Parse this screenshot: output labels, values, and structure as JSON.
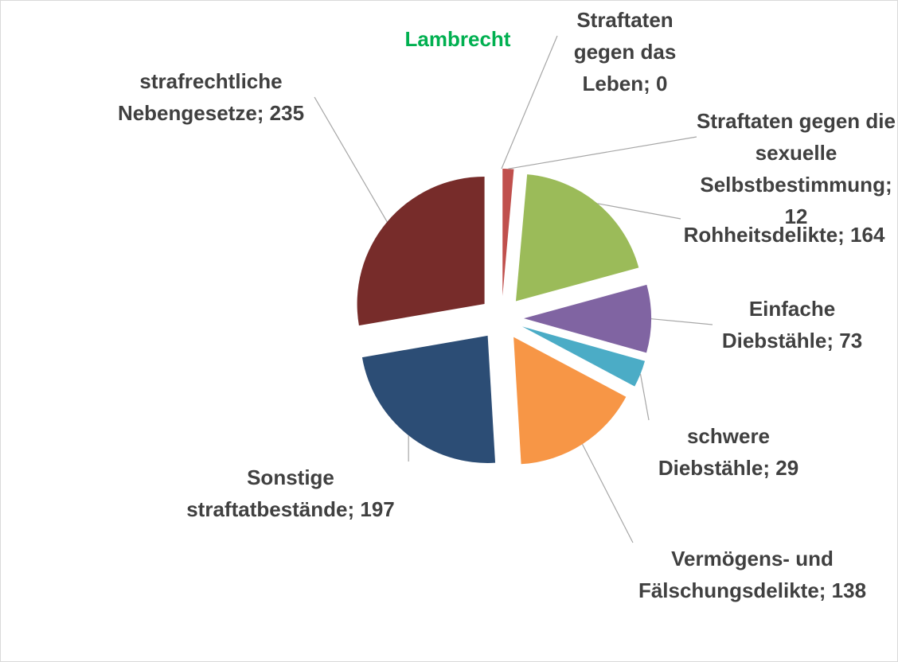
{
  "chart_data": {
    "type": "pie",
    "title": "Lambrecht",
    "categories": [
      "Straftaten gegen das Leben",
      "Straftaten gegen die sexuelle Selbstbestimmung",
      "Rohheitsdelikte",
      "Einfache Diebstähle",
      "schwere Diebstähle",
      "Vermögens- und Fälschungsdelikte",
      "Sonstige straftatbestände",
      "strafrechtliche Nebengesetze"
    ],
    "values": [
      0,
      12,
      164,
      73,
      29,
      138,
      197,
      235
    ],
    "colors": [
      "#4f81bd",
      "#c0504d",
      "#9bbb59",
      "#8064a2",
      "#4bacc6",
      "#f79646",
      "#2c4d75",
      "#772c2a"
    ],
    "exploded": true
  }
}
